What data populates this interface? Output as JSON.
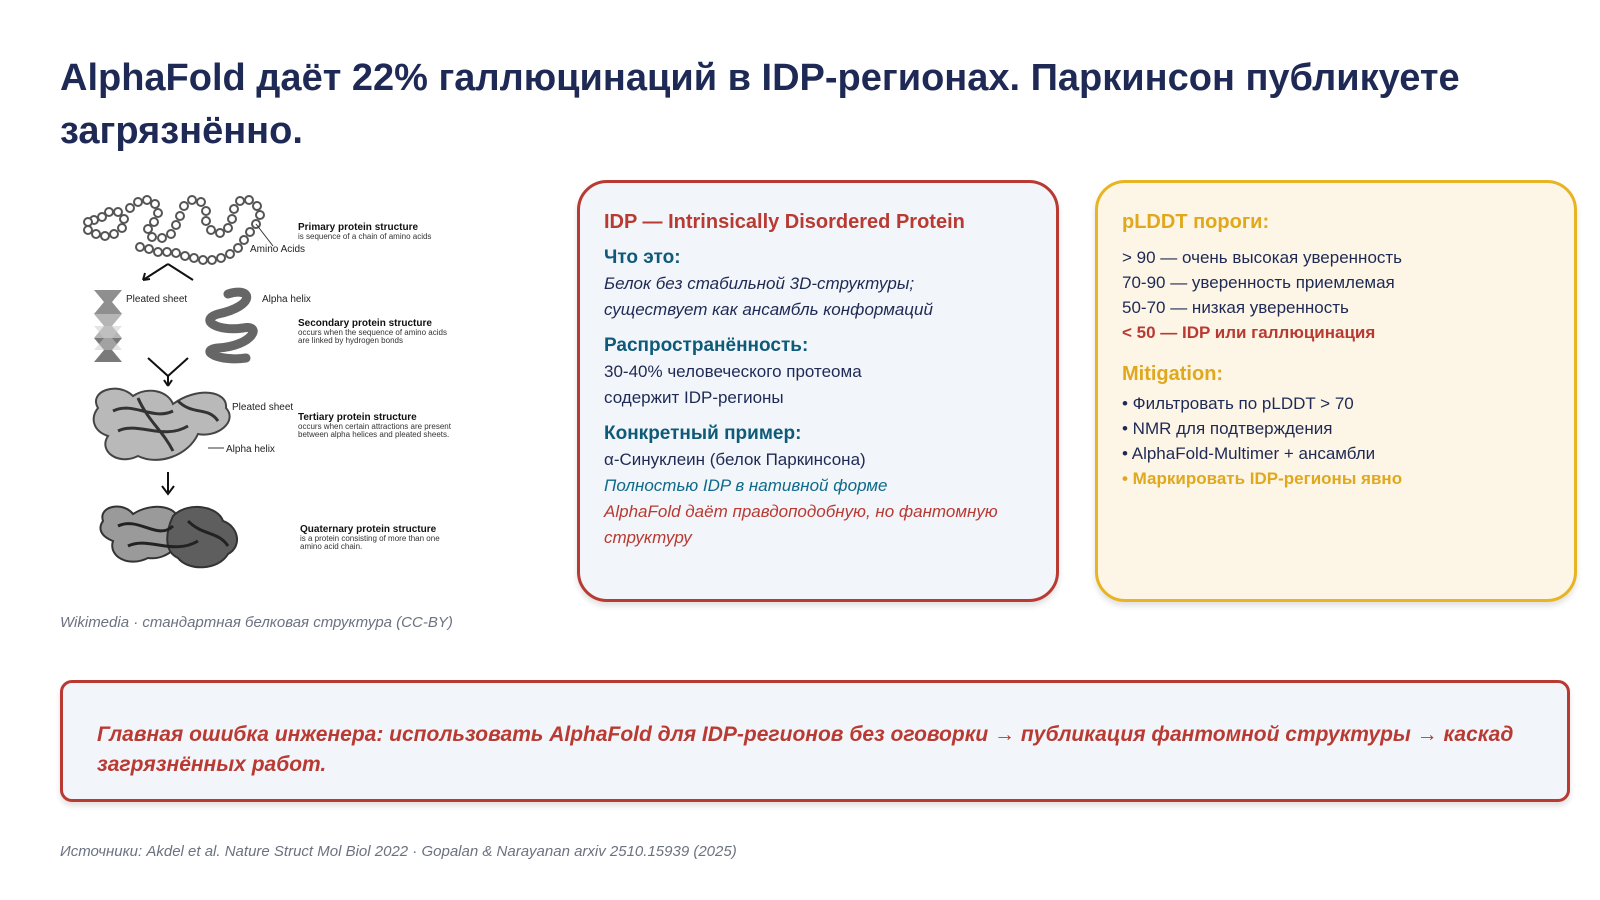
{
  "title": "AlphaFold даёт 22% галлюцинаций в IDP-регионах. Паркинсон публикуете загрязнённо.",
  "figure": {
    "caption": "Wikimedia · стандартная белковая структура (CC-BY)",
    "labels": {
      "amino_acids": "Amino Acids",
      "primary_title": "Primary protein structure",
      "primary_desc": "is sequence of a chain of amino acids",
      "pleated_sheet": "Pleated sheet",
      "alpha_helix": "Alpha helix",
      "secondary_title": "Secondary protein structure",
      "secondary_desc_1": "occurs when the sequence of amino acids",
      "secondary_desc_2": "are linked by hydrogen bonds",
      "pleated_sheet_2": "Pleated sheet",
      "tertiary_title": "Tertiary protein structure",
      "tertiary_desc_1": "occurs when certain attractions are present",
      "tertiary_desc_2": "between alpha helices and pleated sheets.",
      "alpha_helix_2": "Alpha helix",
      "quaternary_title": "Quaternary protein structure",
      "quaternary_desc_1": "is a protein consisting of more than one",
      "quaternary_desc_2": "amino acid chain."
    }
  },
  "idp_card": {
    "heading": "IDP — Intrinsically Disordered Protein",
    "what_label": "Что это:",
    "what_line1": "Белок без стабильной 3D-структуры;",
    "what_line2": "существует как ансамбль конформаций",
    "prevalence_label": "Распространённость:",
    "prevalence_line1": "30-40% человеческого протеома",
    "prevalence_line2": "содержит IDP-регионы",
    "example_label": "Конкретный пример:",
    "example_line1": "α-Синуклеин (белок Паркинсона)",
    "example_line2": "Полностью IDP в нативной форме",
    "example_line3": "AlphaFold даёт правдоподобную, но фантомную",
    "example_line4": "структуру"
  },
  "plddt_card": {
    "heading": "pLDDT пороги:",
    "thresholds": [
      "> 90 — очень высокая уверенность",
      "70-90 — уверенность приемлемая",
      "50-70 — низкая уверенность",
      "< 50 — IDP или галлюцинация"
    ],
    "mitigation_heading": "Mitigation:",
    "mitigation_items": [
      "• Фильтровать по pLDDT > 70",
      "• NMR для подтверждения",
      "• AlphaFold-Multimer + ансамбли",
      "• Маркировать IDP-регионы явно"
    ]
  },
  "callout": {
    "text": "Главная ошибка инженера: использовать AlphaFold для IDP-регионов без оговорки → публикация фантомной структуры → каскад загрязнённых работ."
  },
  "sources": "Источники: Akdel et al. Nature Struct Mol Biol 2022 · Gopalan & Narayanan arxiv 2510.15939 (2025)",
  "colors": {
    "title": "#1e2a55",
    "accent_red": "#b83a32",
    "accent_gold": "#e0a81c",
    "teal": "#0e5a79"
  }
}
